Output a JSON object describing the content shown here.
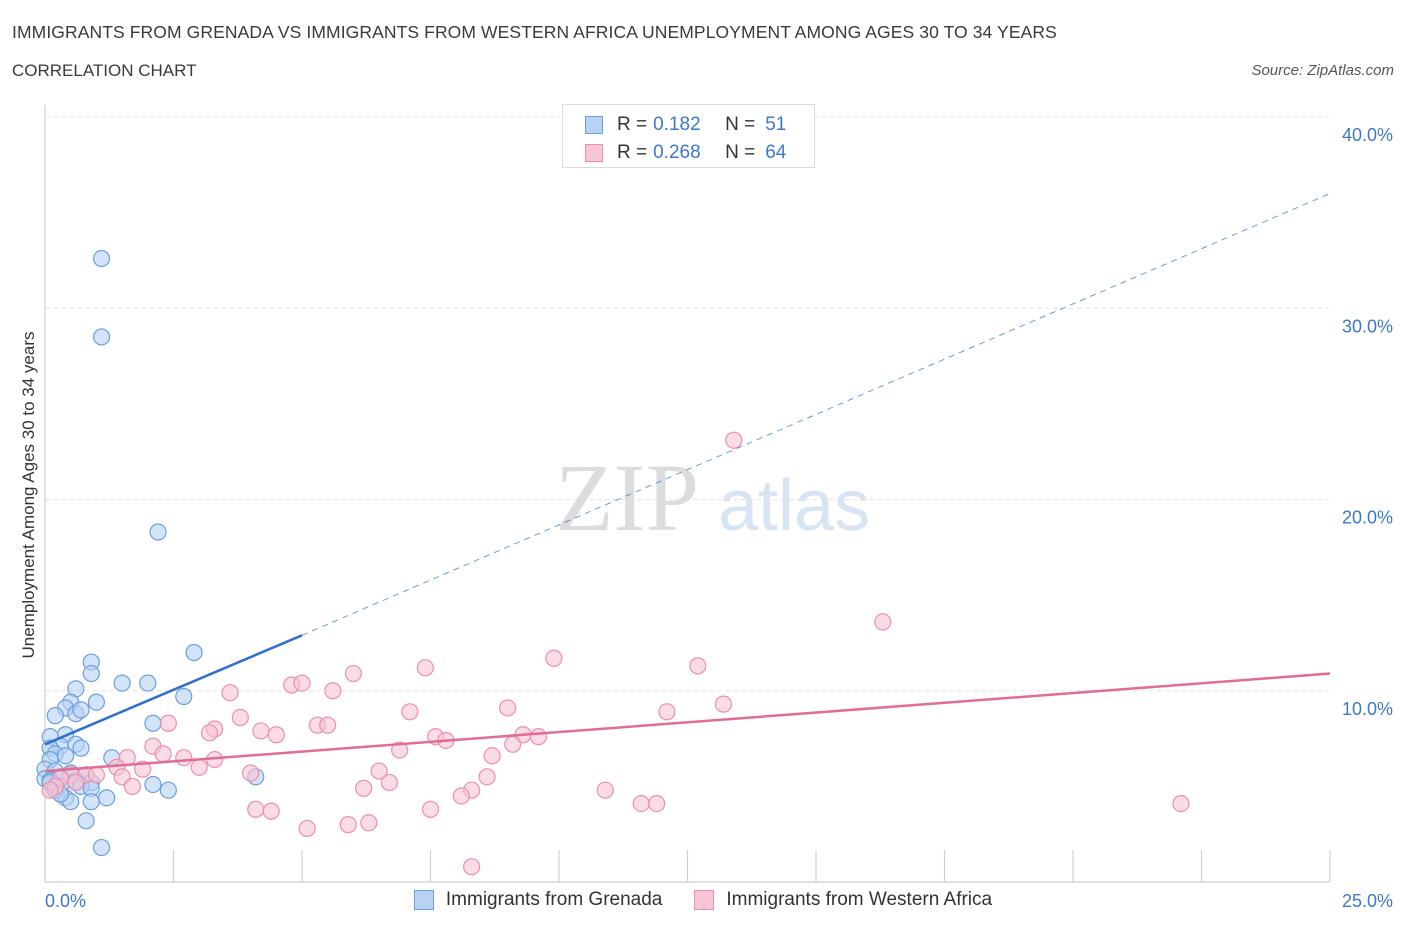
{
  "header": {
    "title": "IMMIGRANTS FROM GRENADA VS IMMIGRANTS FROM WESTERN AFRICA UNEMPLOYMENT AMONG AGES 30 TO 34 YEARS",
    "subtitle": "CORRELATION CHART",
    "source": "Source: ZipAtlas.com"
  },
  "legend_top": {
    "r_label": "R =",
    "n_label": "N =",
    "series1": {
      "r": "0.182",
      "n": "51"
    },
    "series2": {
      "r": "0.268",
      "n": "64"
    }
  },
  "colors": {
    "blue_fill": "#b8d2f4",
    "blue_stroke": "#6a9fe0",
    "blue_line": "#2f6fcf",
    "pink_fill": "#f7c5d4",
    "pink_stroke": "#eb8fac",
    "pink_line": "#e36b97",
    "tick_text": "#3d78c9",
    "grid": "#e2e2e2"
  },
  "chart_data": {
    "type": "scatter",
    "title": "IMMIGRANTS FROM GRENADA VS IMMIGRANTS FROM WESTERN AFRICA UNEMPLOYMENT AMONG AGES 30 TO 34 YEARS",
    "xlabel": "",
    "ylabel": "Unemployment Among Ages 30 to 34 years",
    "xlim": [
      0,
      25
    ],
    "ylim": [
      0,
      40
    ],
    "x_tick_labels": [
      "0.0%",
      "25.0%"
    ],
    "y_ticks": [
      10,
      20,
      30,
      40
    ],
    "y_tick_labels": [
      "10.0%",
      "20.0%",
      "30.0%",
      "40.0%"
    ],
    "watermark": {
      "zip": "ZIP",
      "atlas": "atlas"
    },
    "series": [
      {
        "name": "Immigrants from Grenada",
        "color": "blue",
        "trend": {
          "x": [
            0.0,
            5.0
          ],
          "y": [
            7.2,
            12.9
          ],
          "dashed_to": [
            25.0,
            36.0
          ]
        },
        "points": [
          [
            1.1,
            32.6
          ],
          [
            1.1,
            28.5
          ],
          [
            2.2,
            18.3
          ],
          [
            2.9,
            12.0
          ],
          [
            0.9,
            11.5
          ],
          [
            0.9,
            10.9
          ],
          [
            0.6,
            10.1
          ],
          [
            1.5,
            10.4
          ],
          [
            2.0,
            10.4
          ],
          [
            2.7,
            9.7
          ],
          [
            1.0,
            9.4
          ],
          [
            0.5,
            9.4
          ],
          [
            0.4,
            9.1
          ],
          [
            0.2,
            8.7
          ],
          [
            0.6,
            8.8
          ],
          [
            0.7,
            9.0
          ],
          [
            2.1,
            8.3
          ],
          [
            0.4,
            7.7
          ],
          [
            0.1,
            7.6
          ],
          [
            0.3,
            7.1
          ],
          [
            0.6,
            7.2
          ],
          [
            0.1,
            7.0
          ],
          [
            0.7,
            7.0
          ],
          [
            0.2,
            6.7
          ],
          [
            0.4,
            6.6
          ],
          [
            1.3,
            6.5
          ],
          [
            0.1,
            6.4
          ],
          [
            0.0,
            5.9
          ],
          [
            0.2,
            5.8
          ],
          [
            0.5,
            5.7
          ],
          [
            0.8,
            5.6
          ],
          [
            0.3,
            5.5
          ],
          [
            0.0,
            5.4
          ],
          [
            0.1,
            5.3
          ],
          [
            0.6,
            5.3
          ],
          [
            0.9,
            5.2
          ],
          [
            0.3,
            5.0
          ],
          [
            0.7,
            5.0
          ],
          [
            0.9,
            4.9
          ],
          [
            2.1,
            5.1
          ],
          [
            2.4,
            4.8
          ],
          [
            4.1,
            5.5
          ],
          [
            0.4,
            4.4
          ],
          [
            1.2,
            4.4
          ],
          [
            0.9,
            4.2
          ],
          [
            0.5,
            4.2
          ],
          [
            0.2,
            4.8
          ],
          [
            0.8,
            3.2
          ],
          [
            1.1,
            1.8
          ],
          [
            0.1,
            5.2
          ],
          [
            0.3,
            4.6
          ]
        ]
      },
      {
        "name": "Immigrants from Western Africa",
        "color": "pink",
        "trend": {
          "x": [
            0.0,
            25.0
          ],
          "y": [
            5.8,
            10.9
          ]
        },
        "points": [
          [
            13.4,
            23.1
          ],
          [
            16.3,
            13.6
          ],
          [
            9.9,
            11.7
          ],
          [
            12.7,
            11.3
          ],
          [
            7.4,
            11.2
          ],
          [
            6.0,
            10.9
          ],
          [
            4.8,
            10.3
          ],
          [
            5.0,
            10.4
          ],
          [
            5.6,
            10.0
          ],
          [
            3.6,
            9.9
          ],
          [
            9.0,
            9.1
          ],
          [
            13.2,
            9.3
          ],
          [
            7.1,
            8.9
          ],
          [
            12.1,
            8.9
          ],
          [
            3.8,
            8.6
          ],
          [
            2.4,
            8.3
          ],
          [
            5.3,
            8.2
          ],
          [
            5.5,
            8.2
          ],
          [
            3.3,
            8.0
          ],
          [
            4.2,
            7.9
          ],
          [
            3.2,
            7.8
          ],
          [
            4.5,
            7.7
          ],
          [
            7.6,
            7.6
          ],
          [
            9.3,
            7.7
          ],
          [
            9.6,
            7.6
          ],
          [
            7.8,
            7.4
          ],
          [
            9.1,
            7.2
          ],
          [
            2.1,
            7.1
          ],
          [
            6.9,
            6.9
          ],
          [
            2.3,
            6.7
          ],
          [
            8.7,
            6.6
          ],
          [
            1.6,
            6.5
          ],
          [
            3.3,
            6.4
          ],
          [
            2.7,
            6.5
          ],
          [
            3.0,
            6.0
          ],
          [
            1.9,
            5.9
          ],
          [
            1.4,
            6.0
          ],
          [
            6.5,
            5.8
          ],
          [
            4.0,
            5.7
          ],
          [
            0.8,
            5.6
          ],
          [
            1.0,
            5.6
          ],
          [
            0.5,
            5.6
          ],
          [
            8.6,
            5.5
          ],
          [
            1.5,
            5.5
          ],
          [
            0.3,
            5.4
          ],
          [
            6.7,
            5.2
          ],
          [
            0.6,
            5.2
          ],
          [
            0.2,
            5.0
          ],
          [
            1.7,
            5.0
          ],
          [
            6.2,
            4.9
          ],
          [
            8.3,
            4.8
          ],
          [
            10.9,
            4.8
          ],
          [
            8.1,
            4.5
          ],
          [
            0.1,
            4.8
          ],
          [
            11.6,
            4.1
          ],
          [
            11.9,
            4.1
          ],
          [
            22.1,
            4.1
          ],
          [
            7.5,
            3.8
          ],
          [
            4.1,
            3.8
          ],
          [
            4.4,
            3.7
          ],
          [
            6.3,
            3.1
          ],
          [
            5.9,
            3.0
          ],
          [
            5.1,
            2.8
          ],
          [
            8.3,
            0.8
          ]
        ]
      }
    ]
  }
}
